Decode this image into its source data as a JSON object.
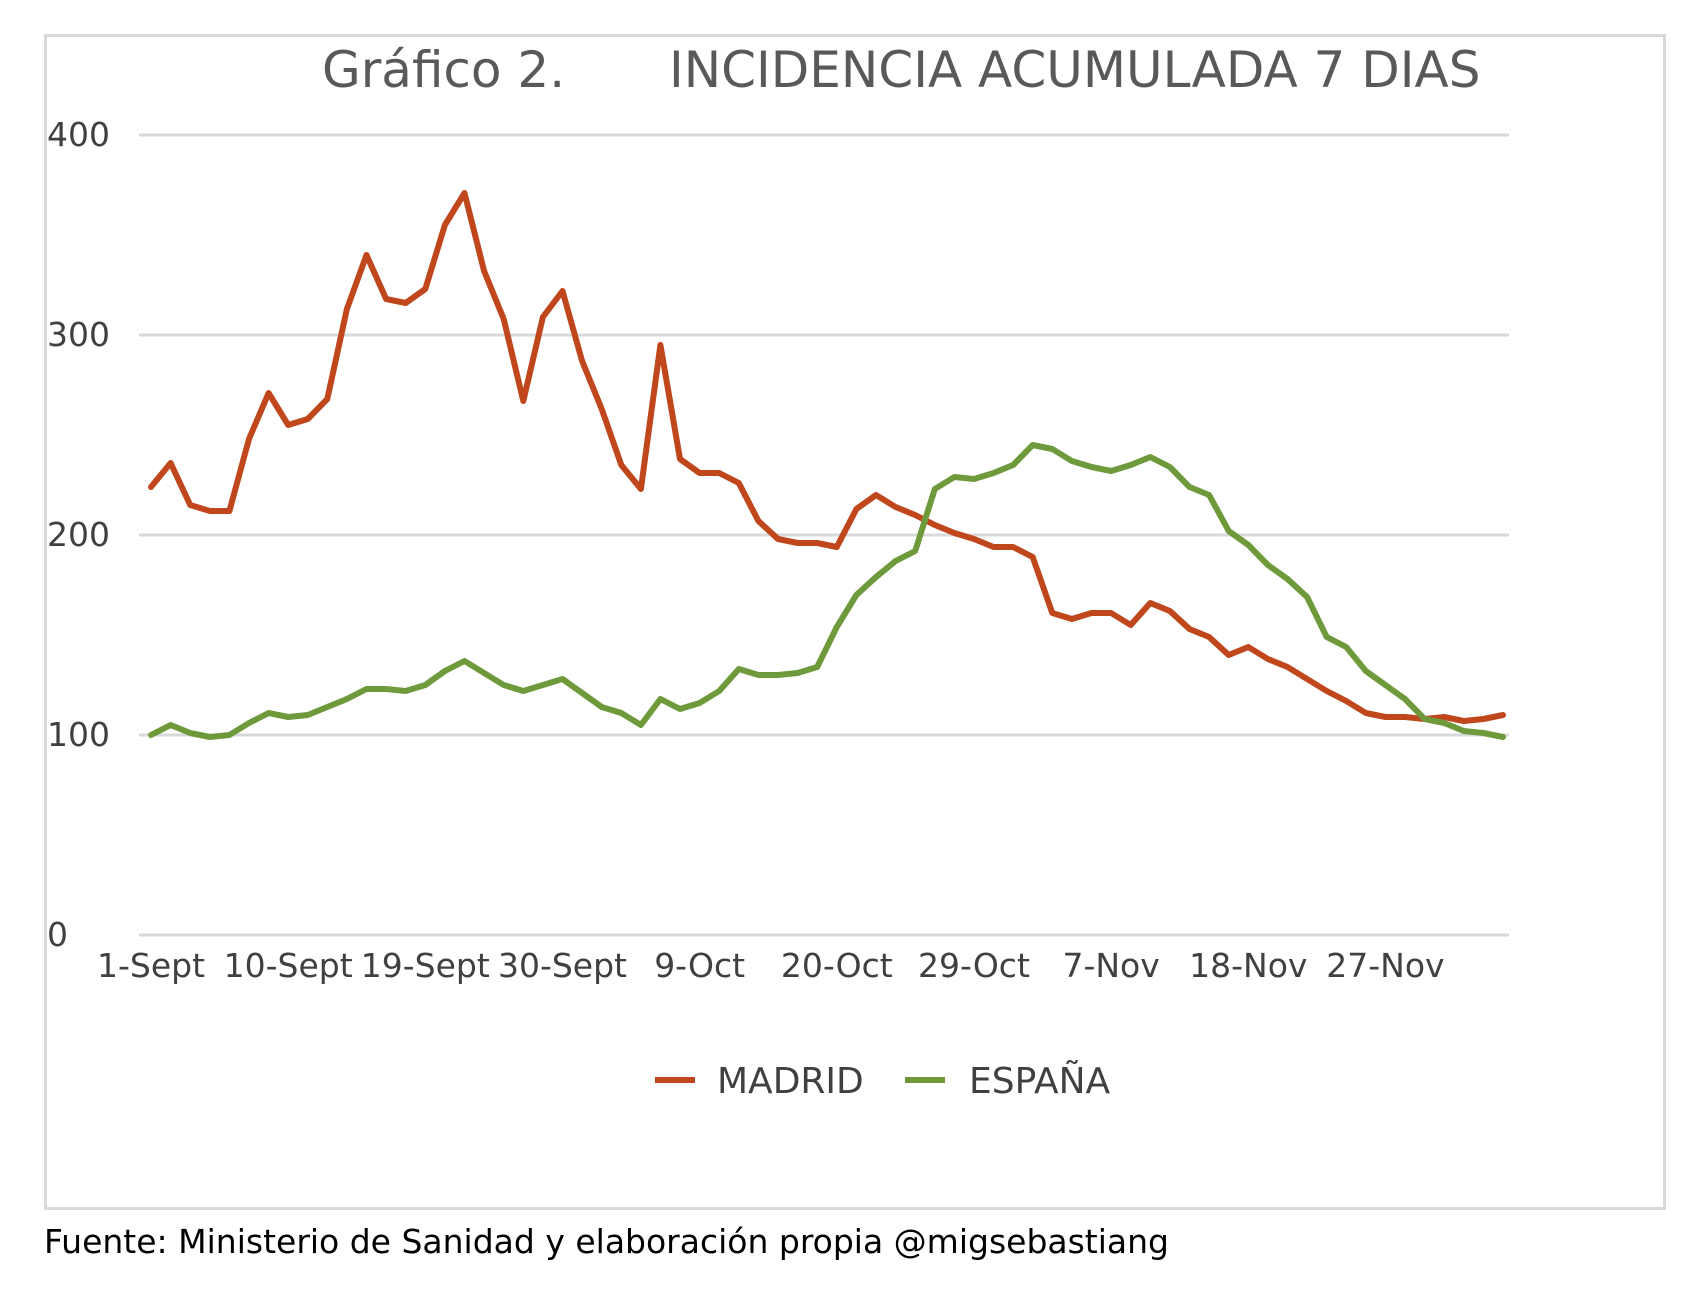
{
  "title_part1": "Gráfico 2.",
  "title_part2": "INCIDENCIA ACUMULADA 7 DIAS",
  "source": "Fuente: Ministerio de Sanidad y elaboración propia @migsebastiang",
  "colors": {
    "madrid": "#c0471c",
    "espana": "#6e9a3c",
    "grid": "#d9d9d9",
    "text": "#404040",
    "title": "#595959"
  },
  "chart_data": {
    "type": "line",
    "title": "Gráfico 2. INCIDENCIA ACUMULADA 7 DIAS",
    "xlabel": "",
    "ylabel": "",
    "ylim": [
      0,
      400
    ],
    "yticks": [
      0,
      100,
      200,
      300,
      400
    ],
    "grid": true,
    "legend_position": "bottom",
    "x_tick_labels": [
      "1-Sept",
      "10-Sept",
      "19-Sept",
      "30-Sept",
      "9-Oct",
      "20-Oct",
      "29-Oct",
      "7-Nov",
      "18-Nov",
      "27-Nov"
    ],
    "x_tick_indices": [
      0,
      7,
      14,
      21,
      28,
      35,
      42,
      49,
      56,
      63
    ],
    "series": [
      {
        "name": "MADRID",
        "color": "#c0471c",
        "values": [
          224,
          236,
          215,
          212,
          212,
          248,
          271,
          255,
          258,
          268,
          313,
          340,
          318,
          316,
          323,
          355,
          371,
          332,
          308,
          267,
          309,
          322,
          287,
          263,
          235,
          223,
          295,
          238,
          231,
          231,
          226,
          207,
          198,
          196,
          196,
          194,
          213,
          220,
          214,
          210,
          205,
          201,
          198,
          194,
          194,
          189,
          161,
          158,
          161,
          161,
          155,
          166,
          162,
          153,
          149,
          140,
          144,
          138,
          134,
          128,
          122,
          117,
          111,
          109,
          109,
          108,
          109,
          107,
          108,
          110
        ]
      },
      {
        "name": "ESPAÑA",
        "color": "#6e9a3c",
        "values": [
          100,
          105,
          101,
          99,
          100,
          106,
          111,
          109,
          110,
          114,
          118,
          123,
          123,
          122,
          125,
          132,
          137,
          131,
          125,
          122,
          125,
          128,
          121,
          114,
          111,
          105,
          118,
          113,
          116,
          122,
          133,
          130,
          130,
          131,
          134,
          154,
          170,
          179,
          187,
          192,
          223,
          229,
          228,
          231,
          235,
          245,
          243,
          237,
          234,
          232,
          235,
          239,
          234,
          224,
          220,
          202,
          195,
          185,
          178,
          169,
          149,
          144,
          132,
          125,
          118,
          108,
          106,
          102,
          101,
          99
        ]
      }
    ]
  }
}
